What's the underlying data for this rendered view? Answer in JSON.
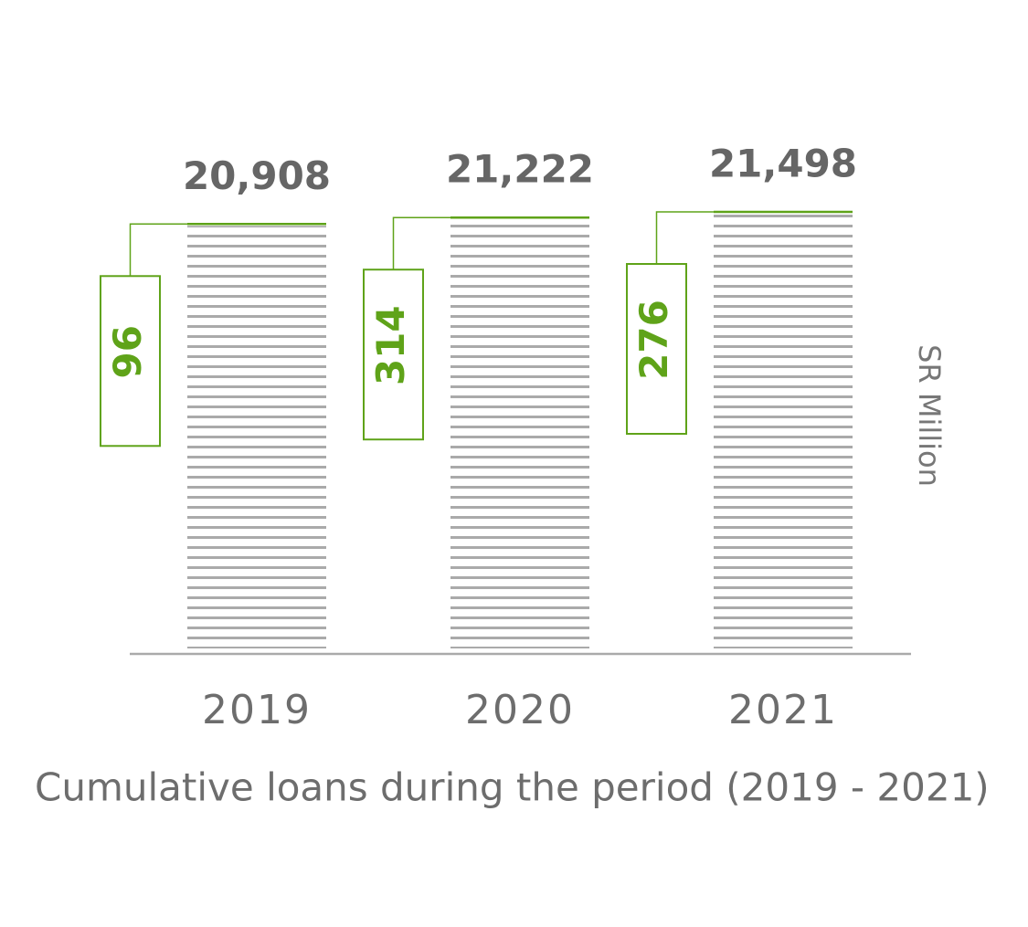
{
  "chart_data": {
    "type": "bar",
    "title": "Cumulative loans during the period (2019 - 2021)",
    "unit_label": "SR Million",
    "categories": [
      "2019",
      "2020",
      "2021"
    ],
    "values": [
      20908,
      21222,
      21498
    ],
    "value_labels": [
      "20,908",
      "21,222",
      "21,498"
    ],
    "additions": [
      96,
      314,
      276
    ],
    "color": "#aaaaaa",
    "accent_color": "#5fa319"
  }
}
